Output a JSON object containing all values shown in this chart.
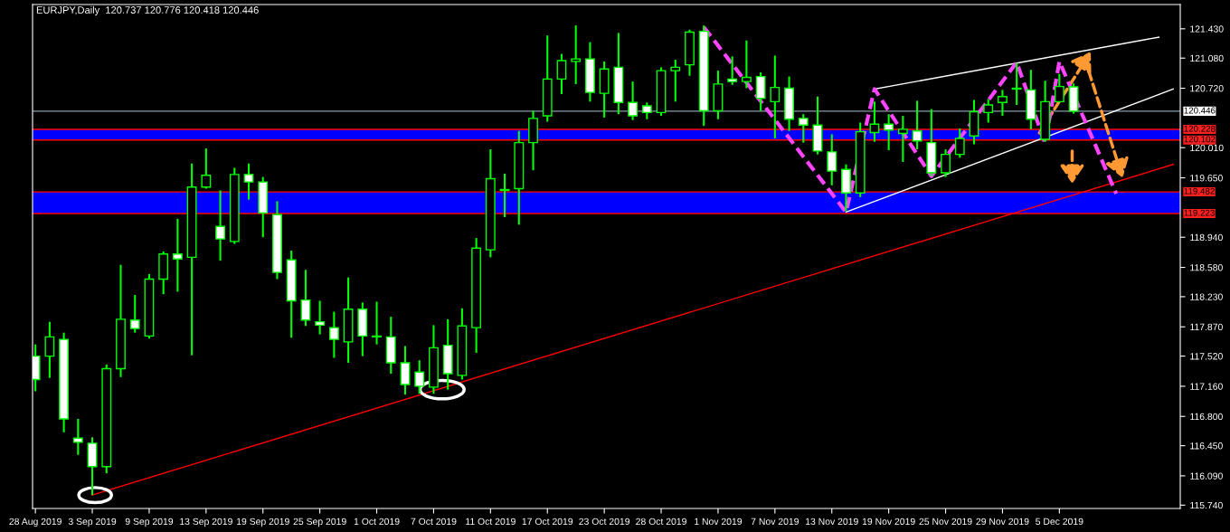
{
  "chart_data": {
    "type": "candlestick",
    "title": "EURJPY,Daily  120.737 120.776 120.418 120.446",
    "categories": [
      "28 Aug 2019",
      null,
      null,
      null,
      "3 Sep 2019",
      null,
      null,
      null,
      "9 Sep 2019",
      null,
      null,
      null,
      "13 Sep 2019",
      null,
      null,
      null,
      "19 Sep 2019",
      null,
      null,
      null,
      "25 Sep 2019",
      null,
      null,
      null,
      "1 Oct 2019",
      null,
      null,
      null,
      "7 Oct 2019",
      null,
      null,
      null,
      "11 Oct 2019",
      null,
      null,
      null,
      "17 Oct 2019",
      null,
      null,
      null,
      "23 Oct 2019",
      null,
      null,
      null,
      "28 Oct 2019",
      null,
      null,
      null,
      "1 Nov 2019",
      null,
      null,
      null,
      "7 Nov 2019",
      null,
      null,
      null,
      "13 Nov 2019",
      null,
      null,
      null,
      "19 Nov 2019",
      null,
      null,
      null,
      "25 Nov 2019",
      null,
      null,
      null,
      "29 Nov 2019",
      null,
      null,
      null,
      "5 Dec 2019",
      null,
      null,
      null,
      null,
      null,
      null,
      null,
      null
    ],
    "ohlc": [
      [
        117.52,
        117.66,
        117.1,
        117.24
      ],
      [
        117.52,
        117.93,
        117.26,
        117.75
      ],
      [
        117.72,
        117.8,
        116.61,
        116.77
      ],
      [
        116.54,
        116.77,
        116.34,
        116.49
      ],
      [
        116.48,
        116.55,
        115.86,
        116.2
      ],
      [
        116.2,
        117.42,
        116.12,
        117.37
      ],
      [
        117.37,
        118.61,
        117.27,
        117.96
      ],
      [
        117.95,
        118.25,
        117.8,
        117.85
      ],
      [
        117.76,
        118.5,
        117.73,
        118.44
      ],
      [
        118.44,
        118.77,
        118.26,
        118.74
      ],
      [
        118.74,
        119.16,
        118.29,
        118.68
      ],
      [
        118.7,
        119.82,
        117.53,
        119.54
      ],
      [
        119.54,
        120.0,
        119.52,
        119.68
      ],
      [
        119.07,
        119.5,
        118.66,
        118.92
      ],
      [
        118.89,
        119.77,
        118.86,
        119.69
      ],
      [
        119.69,
        119.82,
        119.39,
        119.6
      ],
      [
        119.6,
        119.66,
        118.94,
        119.23
      ],
      [
        119.21,
        119.37,
        118.44,
        118.52
      ],
      [
        118.67,
        118.78,
        117.74,
        118.18
      ],
      [
        118.19,
        118.55,
        117.88,
        117.95
      ],
      [
        117.93,
        118.18,
        117.78,
        117.89
      ],
      [
        117.86,
        118.05,
        117.5,
        117.72
      ],
      [
        117.69,
        118.46,
        117.44,
        118.08
      ],
      [
        118.08,
        118.16,
        117.52,
        117.76
      ],
      [
        117.75,
        118.17,
        117.66,
        117.76
      ],
      [
        117.75,
        117.99,
        117.31,
        117.44
      ],
      [
        117.44,
        117.64,
        117.06,
        117.18
      ],
      [
        117.33,
        117.47,
        117.07,
        117.16
      ],
      [
        117.15,
        117.89,
        117.07,
        117.62
      ],
      [
        117.65,
        117.96,
        117.12,
        117.31
      ],
      [
        117.29,
        118.09,
        117.24,
        117.88
      ],
      [
        117.86,
        118.93,
        117.56,
        118.81
      ],
      [
        118.79,
        119.99,
        118.7,
        119.64
      ],
      [
        119.5,
        119.7,
        119.18,
        119.51
      ],
      [
        119.52,
        120.21,
        119.09,
        120.07
      ],
      [
        120.07,
        120.45,
        119.74,
        120.36
      ],
      [
        120.39,
        121.35,
        120.32,
        120.83
      ],
      [
        120.83,
        121.13,
        120.65,
        121.05
      ],
      [
        121.04,
        121.47,
        120.77,
        121.07
      ],
      [
        121.07,
        121.27,
        120.56,
        120.67
      ],
      [
        120.66,
        121.04,
        120.37,
        120.95
      ],
      [
        120.97,
        121.38,
        120.41,
        120.55
      ],
      [
        120.55,
        120.8,
        120.34,
        120.39
      ],
      [
        120.51,
        120.55,
        120.35,
        120.43
      ],
      [
        120.43,
        120.97,
        120.39,
        120.93
      ],
      [
        120.93,
        121.06,
        120.56,
        120.97
      ],
      [
        121.0,
        121.42,
        120.87,
        121.39
      ],
      [
        121.4,
        121.47,
        120.27,
        120.45
      ],
      [
        120.45,
        120.93,
        120.35,
        120.77
      ],
      [
        120.83,
        121.1,
        120.76,
        120.8
      ],
      [
        120.8,
        121.29,
        120.72,
        120.85
      ],
      [
        120.86,
        120.91,
        120.45,
        120.6
      ],
      [
        120.56,
        121.11,
        120.12,
        120.73
      ],
      [
        120.72,
        120.86,
        120.21,
        120.35
      ],
      [
        120.36,
        120.41,
        120.07,
        120.28
      ],
      [
        120.28,
        120.62,
        119.93,
        119.97
      ],
      [
        119.96,
        120.17,
        119.56,
        119.73
      ],
      [
        119.75,
        119.81,
        119.25,
        119.47
      ],
      [
        119.47,
        120.31,
        119.42,
        120.2
      ],
      [
        120.19,
        120.56,
        120.08,
        120.29
      ],
      [
        120.29,
        120.41,
        119.98,
        120.22
      ],
      [
        120.18,
        120.39,
        119.84,
        120.23
      ],
      [
        120.21,
        120.57,
        119.99,
        120.09
      ],
      [
        120.07,
        120.47,
        119.67,
        119.71
      ],
      [
        119.71,
        119.99,
        119.66,
        119.93
      ],
      [
        119.93,
        120.24,
        119.89,
        120.12
      ],
      [
        120.15,
        120.58,
        120.05,
        120.44
      ],
      [
        120.43,
        120.59,
        120.31,
        120.52
      ],
      [
        120.55,
        120.7,
        120.39,
        120.62
      ],
      [
        120.71,
        121.02,
        120.52,
        120.72
      ],
      [
        120.7,
        120.94,
        120.23,
        120.35
      ],
      [
        120.11,
        120.81,
        120.08,
        120.56
      ],
      [
        120.56,
        120.89,
        120.55,
        120.74
      ],
      [
        120.737,
        120.776,
        120.418,
        120.446
      ],
      null,
      null,
      null,
      null,
      null,
      null,
      null
    ],
    "series": [
      {
        "type": "line",
        "color": "#ff0000",
        "line_style": "solid",
        "values": [
          null,
          null,
          null,
          null,
          115.86,
          null,
          null,
          null,
          null,
          null,
          null,
          null,
          null,
          null,
          null,
          null,
          null,
          null,
          null,
          null,
          null,
          null,
          null,
          null,
          null,
          null,
          null,
          null,
          null,
          null,
          null,
          null,
          null,
          null,
          null,
          null,
          null,
          null,
          null,
          null,
          null,
          null,
          null,
          null,
          null,
          null,
          null,
          null,
          null,
          null,
          null,
          null,
          null,
          null,
          null,
          null,
          null,
          null,
          null,
          null,
          null,
          null,
          null,
          null,
          null,
          null,
          null,
          null,
          null,
          null,
          null,
          null,
          null,
          null,
          null,
          null,
          null,
          null,
          null,
          null,
          119.81
        ]
      },
      {
        "type": "line",
        "color": "#ffffff",
        "line_style": "solid",
        "values": [
          null,
          null,
          null,
          null,
          null,
          null,
          null,
          null,
          null,
          null,
          null,
          null,
          null,
          null,
          null,
          null,
          null,
          null,
          null,
          null,
          null,
          null,
          null,
          null,
          null,
          null,
          null,
          null,
          null,
          null,
          null,
          null,
          null,
          null,
          null,
          null,
          null,
          null,
          null,
          null,
          null,
          null,
          null,
          null,
          null,
          null,
          null,
          null,
          null,
          null,
          null,
          null,
          null,
          null,
          null,
          null,
          null,
          null,
          null,
          120.71,
          null,
          null,
          null,
          null,
          null,
          null,
          null,
          null,
          null,
          null,
          null,
          null,
          null,
          null,
          null,
          null,
          null,
          null,
          null,
          121.33,
          null
        ]
      },
      {
        "type": "line",
        "color": "#ffffff",
        "line_style": "solid",
        "values": [
          null,
          null,
          null,
          null,
          null,
          null,
          null,
          null,
          null,
          null,
          null,
          null,
          null,
          null,
          null,
          null,
          null,
          null,
          null,
          null,
          null,
          null,
          null,
          null,
          null,
          null,
          null,
          null,
          null,
          null,
          null,
          null,
          null,
          null,
          null,
          null,
          null,
          null,
          null,
          null,
          null,
          null,
          null,
          null,
          null,
          null,
          null,
          null,
          null,
          null,
          null,
          null,
          null,
          null,
          null,
          null,
          null,
          119.24,
          null,
          null,
          null,
          null,
          null,
          null,
          null,
          null,
          null,
          null,
          null,
          null,
          null,
          null,
          null,
          null,
          null,
          null,
          null,
          null,
          null,
          null,
          120.71
        ]
      },
      {
        "type": "line",
        "color": "#ff44ff",
        "line_style": "dashed",
        "values": [
          null,
          null,
          null,
          null,
          null,
          null,
          null,
          null,
          null,
          null,
          null,
          null,
          null,
          null,
          null,
          null,
          null,
          null,
          null,
          null,
          null,
          null,
          null,
          null,
          null,
          null,
          null,
          null,
          null,
          null,
          null,
          null,
          null,
          null,
          null,
          null,
          null,
          null,
          null,
          null,
          null,
          null,
          null,
          null,
          null,
          null,
          null,
          121.45,
          null,
          null,
          null,
          null,
          null,
          null,
          null,
          null,
          null,
          119.24,
          null,
          120.71,
          null,
          null,
          null,
          119.67,
          null,
          null,
          null,
          null,
          null,
          121.03,
          null,
          120.06,
          121.04,
          null,
          null,
          null,
          119.46,
          null,
          null,
          null,
          null
        ]
      }
    ],
    "ylim": [
      115.7,
      121.72
    ],
    "yticks": [
      {
        "value": 121.43,
        "label": "121.430"
      },
      {
        "value": 121.08,
        "label": "121.080"
      },
      {
        "value": 120.72,
        "label": "120.720"
      },
      {
        "value": 120.01,
        "label": "120.010"
      },
      {
        "value": 119.65,
        "label": "119.650"
      },
      {
        "value": 118.94,
        "label": "118.940"
      },
      {
        "value": 118.58,
        "label": "118.580"
      },
      {
        "value": 118.23,
        "label": "118.230"
      },
      {
        "value": 117.87,
        "label": "117.870"
      },
      {
        "value": 117.52,
        "label": "117.520"
      },
      {
        "value": 117.16,
        "label": "117.160"
      },
      {
        "value": 116.8,
        "label": "116.800"
      },
      {
        "value": 116.45,
        "label": "116.450"
      },
      {
        "value": 116.09,
        "label": "116.090"
      },
      {
        "value": 115.74,
        "label": "115.740"
      }
    ],
    "ref_lines": [
      {
        "axis": "y",
        "value": 120.446,
        "label": "120.446",
        "color": "#8a9aaa"
      },
      {
        "axis": "y",
        "value": 120.228,
        "label": "120.228",
        "color": "#ff0000"
      },
      {
        "axis": "y",
        "value": 120.102,
        "label": "120.102",
        "color": "#ff0000"
      },
      {
        "axis": "y",
        "value": 119.482,
        "label": "119.482",
        "color": "#ff0000"
      },
      {
        "axis": "y",
        "value": 119.223,
        "label": "119.223",
        "color": "#ff0000"
      }
    ],
    "bands": [
      {
        "axis": "y",
        "from": 120.102,
        "to": 120.228,
        "color": "#0000ff"
      },
      {
        "axis": "y",
        "from": 119.223,
        "to": 119.482,
        "color": "#0000ff"
      }
    ],
    "grid": false,
    "legend": false
  }
}
